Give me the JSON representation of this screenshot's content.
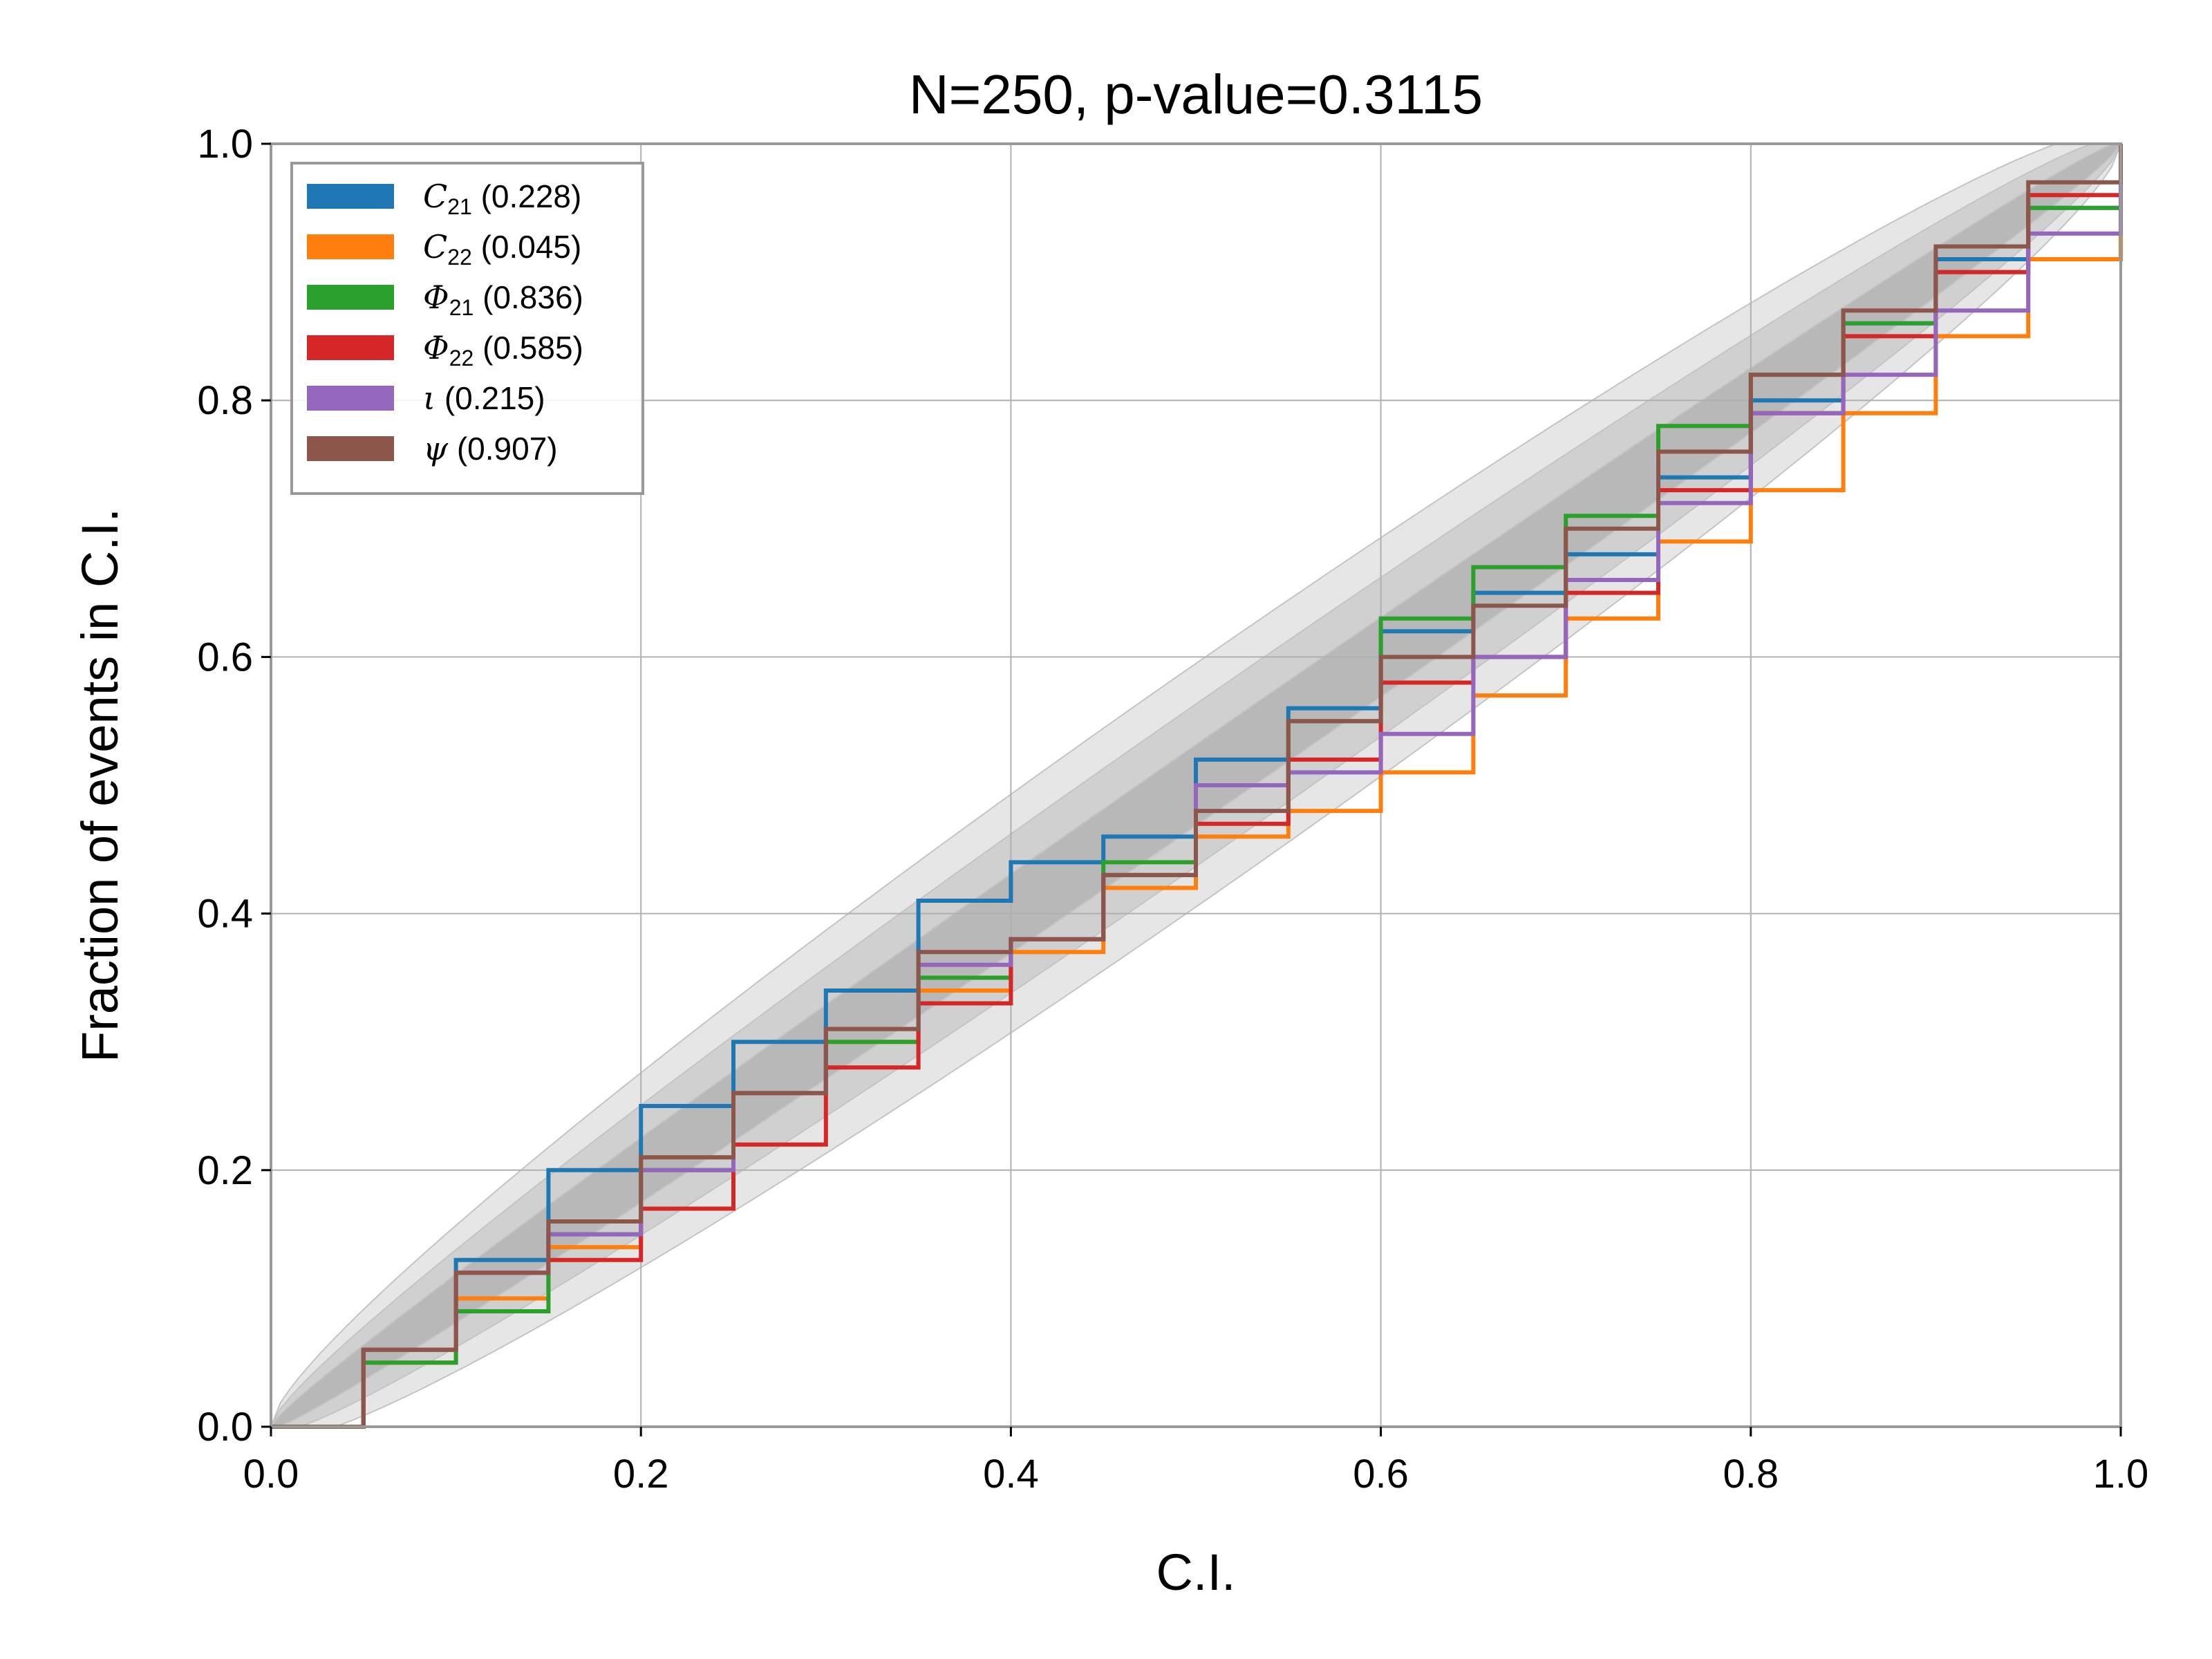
{
  "chart_data": {
    "type": "line",
    "title": "N=250, p-value=0.3115",
    "xlabel": "C.I.",
    "ylabel": "Fraction of events in C.I.",
    "xlim": [
      0.0,
      1.0
    ],
    "ylim": [
      0.0,
      1.0
    ],
    "xticks": [
      "0.0",
      "0.2",
      "0.4",
      "0.6",
      "0.8",
      "1.0"
    ],
    "yticks": [
      "0.0",
      "0.2",
      "0.4",
      "0.6",
      "0.8",
      "1.0"
    ],
    "grid": true,
    "legend_position": "top-left",
    "confidence_bands": [
      {
        "level": "1-sigma",
        "color": "#b8b8b8"
      },
      {
        "level": "2-sigma",
        "color": "#d0d0d0"
      },
      {
        "level": "3-sigma",
        "color": "#e6e6e6"
      }
    ],
    "series": [
      {
        "name": "C21",
        "symbol": "C",
        "subscript": "21",
        "pvalue": "(0.228)",
        "color": "#1f77b4",
        "x": [
          0.0,
          0.05,
          0.1,
          0.15,
          0.2,
          0.25,
          0.3,
          0.35,
          0.4,
          0.45,
          0.5,
          0.55,
          0.6,
          0.65,
          0.7,
          0.75,
          0.8,
          0.85,
          0.9,
          0.95,
          1.0
        ],
        "y": [
          0.0,
          0.06,
          0.13,
          0.2,
          0.25,
          0.3,
          0.34,
          0.41,
          0.44,
          0.46,
          0.52,
          0.56,
          0.62,
          0.65,
          0.68,
          0.74,
          0.8,
          0.86,
          0.91,
          0.95,
          1.0
        ]
      },
      {
        "name": "C22",
        "symbol": "C",
        "subscript": "22",
        "pvalue": "(0.045)",
        "color": "#ff7f0e",
        "x": [
          0.0,
          0.05,
          0.1,
          0.15,
          0.2,
          0.25,
          0.3,
          0.35,
          0.4,
          0.45,
          0.5,
          0.55,
          0.6,
          0.65,
          0.7,
          0.75,
          0.8,
          0.85,
          0.9,
          0.95,
          1.0
        ],
        "y": [
          0.0,
          0.05,
          0.1,
          0.14,
          0.21,
          0.26,
          0.3,
          0.34,
          0.37,
          0.42,
          0.46,
          0.48,
          0.51,
          0.57,
          0.63,
          0.69,
          0.73,
          0.79,
          0.85,
          0.91,
          1.0
        ]
      },
      {
        "name": "Phi21",
        "symbol": "Φ",
        "subscript": "21",
        "pvalue": "(0.836)",
        "color": "#2ca02c",
        "x": [
          0.0,
          0.05,
          0.1,
          0.15,
          0.2,
          0.25,
          0.3,
          0.35,
          0.4,
          0.45,
          0.5,
          0.55,
          0.6,
          0.65,
          0.7,
          0.75,
          0.8,
          0.85,
          0.9,
          0.95,
          1.0
        ],
        "y": [
          0.0,
          0.05,
          0.09,
          0.15,
          0.2,
          0.26,
          0.3,
          0.35,
          0.38,
          0.44,
          0.5,
          0.55,
          0.63,
          0.67,
          0.71,
          0.78,
          0.82,
          0.86,
          0.9,
          0.95,
          1.0
        ]
      },
      {
        "name": "Phi22",
        "symbol": "Φ",
        "subscript": "22",
        "pvalue": "(0.585)",
        "color": "#d62728",
        "x": [
          0.0,
          0.05,
          0.1,
          0.15,
          0.2,
          0.25,
          0.3,
          0.35,
          0.4,
          0.45,
          0.5,
          0.55,
          0.6,
          0.65,
          0.7,
          0.75,
          0.8,
          0.85,
          0.9,
          0.95,
          1.0
        ],
        "y": [
          0.0,
          0.06,
          0.12,
          0.13,
          0.17,
          0.22,
          0.28,
          0.33,
          0.38,
          0.43,
          0.47,
          0.52,
          0.58,
          0.6,
          0.65,
          0.73,
          0.79,
          0.85,
          0.9,
          0.96,
          1.0
        ]
      },
      {
        "name": "iota",
        "symbol": "ι",
        "subscript": "",
        "pvalue": "(0.215)",
        "color": "#9467bd",
        "x": [
          0.0,
          0.05,
          0.1,
          0.15,
          0.2,
          0.25,
          0.3,
          0.35,
          0.4,
          0.45,
          0.5,
          0.55,
          0.6,
          0.65,
          0.7,
          0.75,
          0.8,
          0.85,
          0.9,
          0.95,
          1.0
        ],
        "y": [
          0.0,
          0.06,
          0.12,
          0.15,
          0.2,
          0.26,
          0.31,
          0.36,
          0.38,
          0.43,
          0.5,
          0.51,
          0.54,
          0.6,
          0.66,
          0.72,
          0.79,
          0.82,
          0.87,
          0.93,
          1.0
        ]
      },
      {
        "name": "psi",
        "symbol": "ψ",
        "subscript": "",
        "pvalue": "(0.907)",
        "color": "#8c564b",
        "x": [
          0.0,
          0.05,
          0.1,
          0.15,
          0.2,
          0.25,
          0.3,
          0.35,
          0.4,
          0.45,
          0.5,
          0.55,
          0.6,
          0.65,
          0.7,
          0.75,
          0.8,
          0.85,
          0.9,
          0.95,
          1.0
        ],
        "y": [
          0.0,
          0.06,
          0.12,
          0.16,
          0.21,
          0.26,
          0.31,
          0.37,
          0.38,
          0.43,
          0.48,
          0.55,
          0.6,
          0.64,
          0.7,
          0.76,
          0.82,
          0.87,
          0.92,
          0.97,
          1.0
        ]
      }
    ]
  }
}
